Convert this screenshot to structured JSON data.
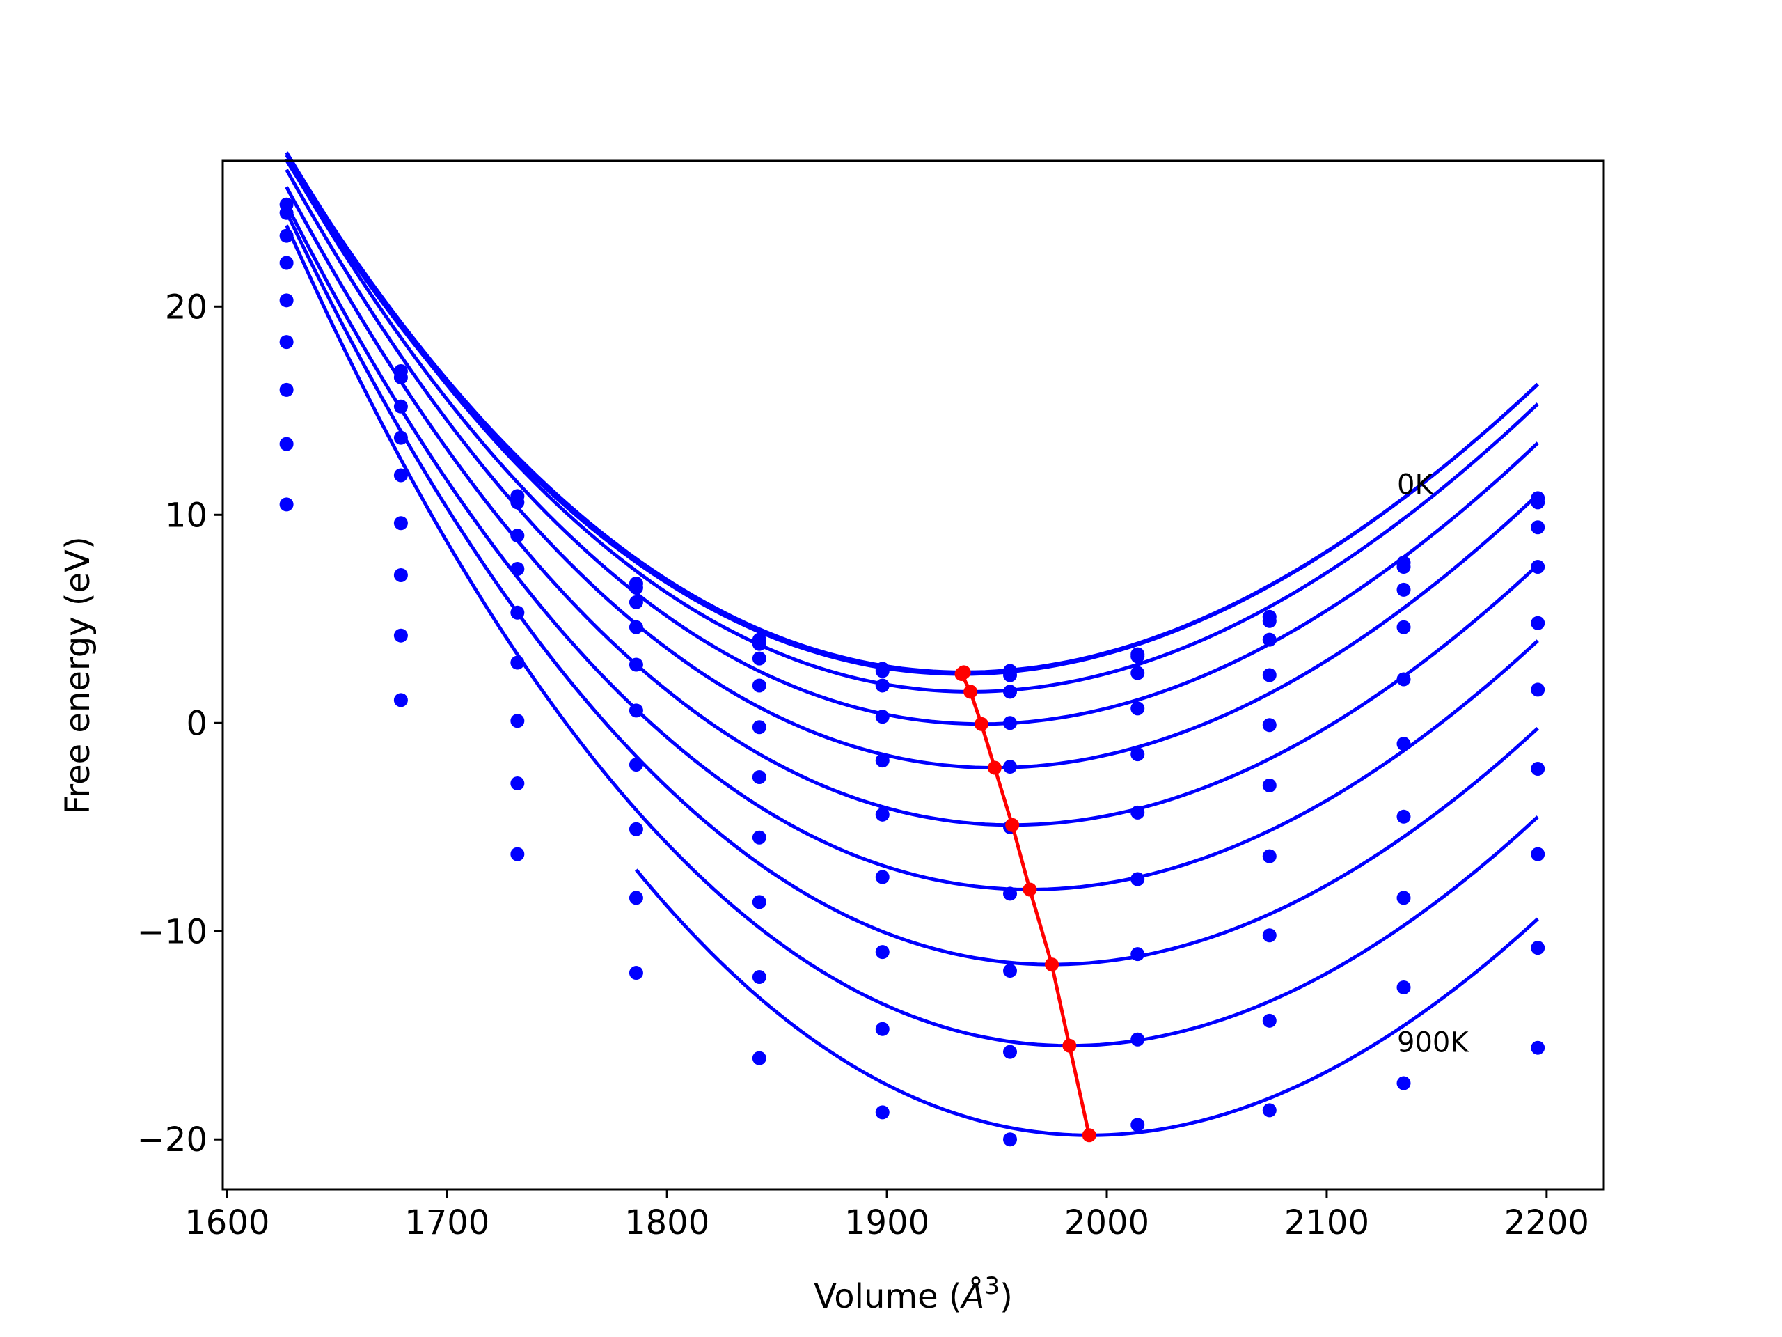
{
  "chart_data": {
    "type": "line",
    "xlabel_main": "Volume (",
    "xlabel_unit": "Å",
    "xlabel_exp": "3",
    "xlabel_close": ")",
    "ylabel": "Free energy (eV)",
    "xlim": [
      1598,
      2226
    ],
    "ylim": [
      -22.4,
      27.0
    ],
    "xticks": [
      1600,
      1700,
      1800,
      1900,
      2000,
      2100,
      2200
    ],
    "yticks": [
      -20,
      -10,
      0,
      10,
      20
    ],
    "grid": false,
    "annotations": [
      {
        "text": "0K",
        "x": 2132,
        "y": 11.0
      },
      {
        "text": "900K",
        "x": 2132,
        "y": -15.8
      }
    ],
    "colors": {
      "curves": "#0000ff",
      "minima": "#ff0000"
    },
    "x": [
      1627,
      1679,
      1732,
      1786,
      1842,
      1898,
      1956,
      2014,
      2074,
      2135,
      2196
    ],
    "series": [
      {
        "values": [
          24.9,
          16.9,
          10.9,
          6.7,
          4.0,
          2.6,
          2.5,
          3.3,
          5.1,
          7.7,
          10.8
        ],
        "min": [
          1935,
          2.44
        ]
      },
      {
        "values": [
          24.5,
          16.6,
          10.6,
          6.5,
          3.8,
          2.5,
          2.3,
          3.2,
          4.9,
          7.5,
          10.6
        ],
        "min": [
          1934,
          2.35
        ]
      },
      {
        "values": [
          23.4,
          15.2,
          9.0,
          5.8,
          3.1,
          1.8,
          1.5,
          2.4,
          4.0,
          6.4,
          9.4
        ],
        "min": [
          1938,
          1.5
        ]
      },
      {
        "values": [
          22.1,
          13.7,
          7.4,
          4.6,
          1.8,
          0.3,
          0.0,
          0.7,
          2.3,
          4.6,
          7.5
        ],
        "min": [
          1943,
          -0.05
        ]
      },
      {
        "values": [
          20.3,
          11.9,
          5.3,
          2.8,
          -0.2,
          -1.8,
          -2.1,
          -1.5,
          -0.1,
          2.1,
          4.8
        ],
        "min": [
          1949,
          -2.15
        ]
      },
      {
        "values": [
          18.3,
          9.6,
          2.9,
          0.6,
          -2.6,
          -4.4,
          -5.0,
          -4.3,
          -3.0,
          -1.0,
          1.6
        ],
        "min": [
          1957,
          -4.9
        ]
      },
      {
        "values": [
          16.0,
          7.1,
          0.1,
          -2.0,
          -5.5,
          -7.4,
          -8.2,
          -7.5,
          -6.4,
          -4.5,
          -2.2
        ],
        "min": [
          1965,
          -8.0
        ]
      },
      {
        "values": [
          13.4,
          4.2,
          -2.9,
          -5.1,
          -8.6,
          -11.0,
          -11.9,
          -11.1,
          -10.2,
          -8.4,
          -6.3
        ],
        "min": [
          1975,
          -11.6
        ]
      },
      {
        "values": [
          10.5,
          1.1,
          -6.3,
          -8.4,
          -12.2,
          -14.7,
          -15.8,
          -15.2,
          -14.3,
          -12.7,
          -10.8
        ],
        "min": [
          1983,
          -15.5
        ]
      },
      {
        "values": [
          null,
          null,
          null,
          -12.0,
          -16.1,
          -18.7,
          -20.0,
          -19.3,
          -18.6,
          -17.3,
          -15.6
        ],
        "min": [
          1992,
          -19.8
        ]
      }
    ],
    "fit_curves": [
      {
        "a": 0.00023,
        "vmin": 1935,
        "emin": 2.44
      },
      {
        "a": 0.00023,
        "vmin": 1934,
        "emin": 2.35
      },
      {
        "a": 0.000235,
        "vmin": 1938,
        "emin": 1.5
      },
      {
        "a": 0.000238,
        "vmin": 1943,
        "emin": -0.05
      },
      {
        "a": 0.000242,
        "vmin": 1949,
        "emin": -2.15
      },
      {
        "a": 0.000245,
        "vmin": 1957,
        "emin": -4.9
      },
      {
        "a": 0.00025,
        "vmin": 1965,
        "emin": -8.0
      },
      {
        "a": 0.000258,
        "vmin": 1975,
        "emin": -11.6
      },
      {
        "a": 0.000268,
        "vmin": 1983,
        "emin": -15.5
      },
      {
        "a": 0.000275,
        "vmin": 1992,
        "emin": -19.8
      }
    ]
  }
}
